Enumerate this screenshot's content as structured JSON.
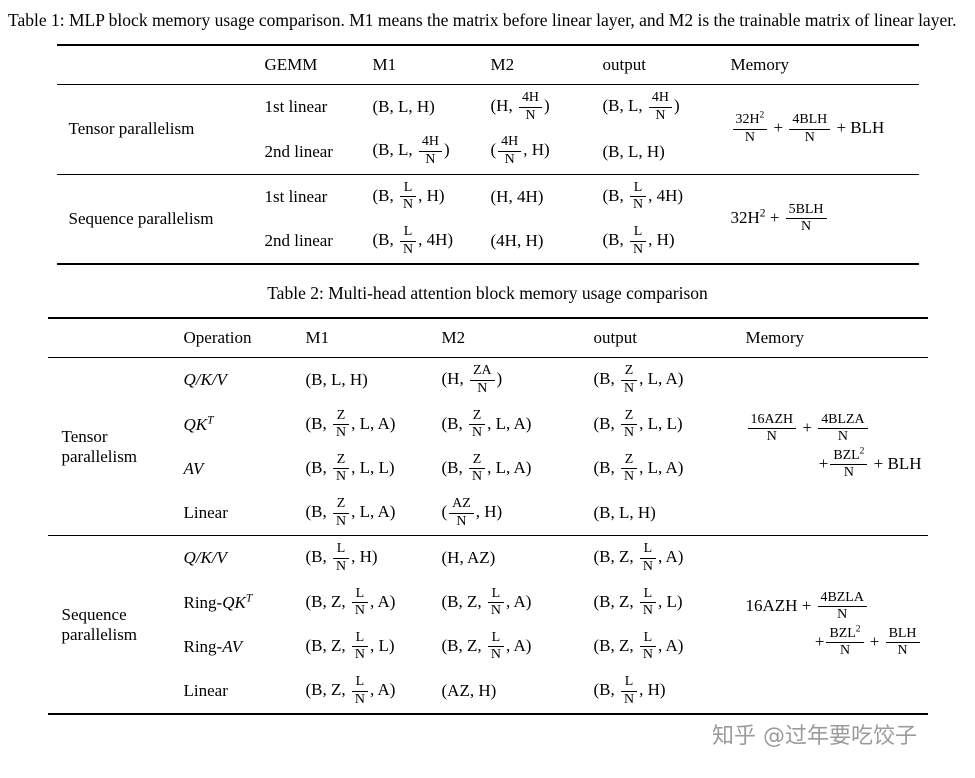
{
  "page": {
    "background": "#ffffff",
    "text_color": "#000000",
    "watermark_color": "#9b9b9b"
  },
  "watermark": "知乎 @过年要吃饺子",
  "table1": {
    "caption": "Table 1: MLP block memory usage comparison. M1 means the matrix before linear layer, and M2 is the trainable matrix of linear layer.",
    "headers": {
      "gemm": "GEMM",
      "m1": "M1",
      "m2": "M2",
      "output": "output",
      "memory": "Memory"
    },
    "groups": [
      {
        "label": "Tensor parallelism",
        "memory": "{32H^{2}|N} + {4BLH|N} + BLH",
        "rows": [
          {
            "gemm": "1st linear",
            "m1": "(B, L, H)",
            "m2": "(H, {4H|N})",
            "output": "(B, L, {4H|N})"
          },
          {
            "gemm": "2nd linear",
            "m1": "(B, L, {4H|N})",
            "m2": "({4H|N}, H)",
            "output": "(B, L, H)"
          }
        ]
      },
      {
        "label": "Sequence parallelism",
        "memory": "32H^{2} + {5BLH|N}",
        "rows": [
          {
            "gemm": "1st linear",
            "m1": "(B, {L|N}, H)",
            "m2": "(H, 4H)",
            "output": "(B, {L|N}, 4H)"
          },
          {
            "gemm": "2nd linear",
            "m1": "(B, {L|N}, 4H)",
            "m2": "(4H, H)",
            "output": "(B, {L|N}, H)"
          }
        ]
      }
    ]
  },
  "table2": {
    "caption": "Table 2: Multi-head attention block memory usage comparison",
    "headers": {
      "operation": "Operation",
      "m1": "M1",
      "m2": "M2",
      "output": "output",
      "memory": "Memory"
    },
    "groups": [
      {
        "label": "Tensor parallelism",
        "memory_lines": [
          "{16AZH|N} + {4BLZA|N}",
          "+{BZL^{2}|N} + BLH"
        ],
        "rows": [
          {
            "operation": "$Q/K/V$",
            "m1": "(B, L, H)",
            "m2": "(H, {ZA|N})",
            "output": "(B, {Z|N}, L, A)"
          },
          {
            "operation": "$QK^{T}$",
            "m1": "(B, {Z|N}, L, A)",
            "m2": "(B, {Z|N}, L, A)",
            "output": "(B, {Z|N}, L, L)"
          },
          {
            "operation": "$AV$",
            "m1": "(B, {Z|N}, L, L)",
            "m2": "(B, {Z|N}, L, A)",
            "output": "(B, {Z|N}, L, A)"
          },
          {
            "operation": "Linear",
            "m1": "(B, {Z|N}, L, A)",
            "m2": "({AZ|N}, H)",
            "output": "(B, L, H)"
          }
        ]
      },
      {
        "label": "Sequence parallelism",
        "memory_lines": [
          "16AZH + {4BZLA|N}",
          "+{BZL^{2}|N} + {BLH|N}"
        ],
        "rows": [
          {
            "operation": "$Q/K/V$",
            "m1": "(B, {L|N}, H)",
            "m2": "(H, AZ)",
            "output": "(B, Z, {L|N}, A)"
          },
          {
            "operation": "Ring-$QK^{T}$",
            "m1": "(B, Z, {L|N}, A)",
            "m2": "(B, Z, {L|N}, A)",
            "output": "(B, Z, {L|N}, L)"
          },
          {
            "operation": "Ring-$AV$",
            "m1": "(B, Z, {L|N}, L)",
            "m2": "(B, Z, {L|N}, A)",
            "output": "(B, Z, {L|N}, A)"
          },
          {
            "operation": "Linear",
            "m1": "(B, Z, {L|N}, A)",
            "m2": "(AZ, H)",
            "output": "(B, {L|N}, H)"
          }
        ]
      }
    ]
  }
}
